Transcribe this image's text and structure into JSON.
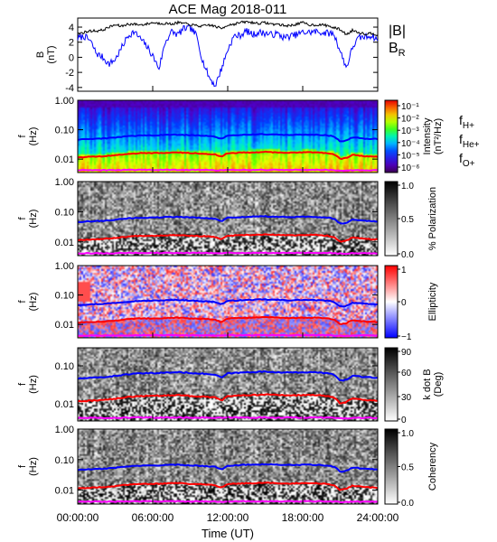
{
  "title": "ACE Mag 2018-011",
  "time_axis": {
    "label": "Time (UT)",
    "ticks": [
      "00:00:00",
      "06:00:00",
      "12:00:00",
      "18:00:00",
      "24:00:00"
    ],
    "range_hours": [
      0,
      24
    ]
  },
  "colors": {
    "B_total": "#000000",
    "B_R": "#0000ff",
    "f_H": "#0000ff",
    "f_He": "#ff0000",
    "f_O": "#ff00ff"
  },
  "chart_data": [
    {
      "type": "line",
      "ylabel": "B\n(nT)",
      "ylim": [
        -4.5,
        5.2
      ],
      "yticks": [
        "4",
        "2",
        "0",
        "-2",
        "-4"
      ],
      "legend": "top-right",
      "series": [
        {
          "name": "|B|",
          "x": [
            0,
            0.5,
            1,
            1.5,
            2,
            2.5,
            3,
            3.5,
            4,
            4.5,
            5,
            5.5,
            6,
            6.5,
            7,
            7.5,
            8,
            8.5,
            9,
            9.5,
            10,
            10.5,
            11,
            11.5,
            12,
            12.5,
            13,
            13.5,
            14,
            14.5,
            15,
            15.5,
            16,
            16.5,
            17,
            17.5,
            18,
            18.5,
            19,
            19.5,
            20,
            20.5,
            21,
            21.5,
            22,
            22.5,
            23,
            23.5,
            24
          ],
          "values": [
            3.1,
            3.3,
            3.5,
            3.5,
            3.6,
            4.0,
            4.3,
            4.1,
            4.4,
            4.4,
            4.3,
            4.4,
            4.6,
            4.5,
            4.5,
            4.4,
            4.6,
            4.5,
            4.3,
            4.2,
            4.1,
            4.3,
            4.1,
            3.8,
            4.3,
            4.4,
            4.6,
            4.7,
            4.6,
            4.5,
            4.6,
            4.4,
            4.4,
            4.2,
            4.2,
            4.4,
            4.6,
            4.3,
            4.3,
            4.3,
            4.2,
            3.9,
            3.7,
            3.0,
            3.6,
            3.3,
            3.1,
            3.2,
            3.0
          ]
        },
        {
          "name": "B_R",
          "x": [
            0,
            0.5,
            1,
            1.5,
            2,
            2.5,
            3,
            3.5,
            4,
            4.5,
            5,
            5.5,
            6,
            6.5,
            7,
            7.5,
            8,
            8.5,
            9,
            9.5,
            10,
            10.5,
            11,
            11.5,
            12,
            12.5,
            13,
            13.5,
            14,
            14.5,
            15,
            15.5,
            16,
            16.5,
            17,
            17.5,
            18,
            18.5,
            19,
            19.5,
            20,
            20.5,
            21,
            21.5,
            22,
            22.5,
            23,
            23.5,
            24
          ],
          "values": [
            2.5,
            2.8,
            2.2,
            0.5,
            0,
            -0.9,
            -0.3,
            1.2,
            2.8,
            3.4,
            2.5,
            1.5,
            0.2,
            -1.5,
            2.0,
            3.4,
            3.0,
            3.8,
            3.9,
            2.9,
            -0.5,
            -2.6,
            -3.8,
            -1.5,
            1.0,
            2.8,
            2.9,
            3.5,
            3.0,
            3.3,
            3.2,
            3.0,
            3.1,
            2.6,
            2.8,
            3.0,
            3.3,
            3.3,
            3.4,
            3.3,
            3.2,
            3.1,
            0.8,
            -1.4,
            1.4,
            2.6,
            2.7,
            2.9,
            2.3
          ]
        }
      ]
    },
    {
      "type": "heatmap",
      "name": "power spectral density",
      "ylabel": "f\n(Hz)",
      "yscale": "log",
      "ylim": [
        0.0035,
        1.0
      ],
      "yticks": [
        "1.00",
        "0.10",
        "0.01"
      ],
      "colorbar": {
        "label": "Intensity\n(nT²/Hz)",
        "palette": "rainbow",
        "ticks": [
          "10⁻¹",
          "10⁻²",
          "10⁻³",
          "10⁻⁴",
          "10⁻⁵",
          "10⁻⁶"
        ]
      },
      "legend_labels": [
        "f",
        "H+",
        "f",
        "He+",
        "f",
        "O+"
      ]
    },
    {
      "type": "heatmap",
      "name": "percent polarization",
      "ylabel": "f\n(Hz)",
      "yscale": "log",
      "ylim": [
        0.0035,
        1.0
      ],
      "yticks": [
        "1.00",
        "0.10",
        "0.01"
      ],
      "colorbar": {
        "label": "% Polarization",
        "palette": "grayscale",
        "ticks": [
          "1.0",
          "0.5",
          "0.0"
        ]
      }
    },
    {
      "type": "heatmap",
      "name": "ellipticity",
      "ylabel": "f\n(Hz)",
      "yscale": "log",
      "ylim": [
        0.0035,
        1.0
      ],
      "yticks": [
        "1.00",
        "0.10",
        "0.01"
      ],
      "colorbar": {
        "label": "Ellipticity",
        "palette": "blue-white-red",
        "ticks": [
          "1",
          "0",
          "−1"
        ]
      }
    },
    {
      "type": "heatmap",
      "name": "wave normal angle",
      "ylabel": "f\n(Hz)",
      "yscale": "log",
      "ylim": [
        0.0035,
        0.3
      ],
      "yticks": [
        "0.10",
        "0.01"
      ],
      "colorbar": {
        "label": "k dot B\n(Deg)",
        "palette": "grayscale",
        "ticks": [
          "90",
          "60",
          "30",
          "0"
        ]
      }
    },
    {
      "type": "heatmap",
      "name": "coherency",
      "ylabel": "f\n(Hz)",
      "yscale": "log",
      "ylim": [
        0.0035,
        1.0
      ],
      "yticks": [
        "1.00",
        "0.10",
        "0.01"
      ],
      "colorbar": {
        "label": "Coherency",
        "palette": "grayscale",
        "ticks": [
          "1.0",
          "0.5",
          "0.0"
        ]
      }
    }
  ],
  "gyrofrequency_lines": {
    "x": [
      0,
      1,
      2,
      3,
      4,
      5,
      6,
      7,
      8,
      9,
      10,
      11,
      11.5,
      12,
      13,
      14,
      15,
      16,
      17,
      18,
      19,
      20,
      20.5,
      21,
      21.5,
      22,
      23,
      24
    ],
    "f_H+": [
      0.046,
      0.048,
      0.05,
      0.054,
      0.06,
      0.063,
      0.064,
      0.066,
      0.068,
      0.065,
      0.062,
      0.058,
      0.048,
      0.063,
      0.066,
      0.069,
      0.07,
      0.068,
      0.066,
      0.068,
      0.067,
      0.064,
      0.058,
      0.04,
      0.043,
      0.055,
      0.05,
      0.048
    ],
    "f_He+": [
      0.0115,
      0.012,
      0.0125,
      0.0135,
      0.015,
      0.016,
      0.016,
      0.0165,
      0.017,
      0.016,
      0.0155,
      0.0145,
      0.012,
      0.016,
      0.0165,
      0.017,
      0.0175,
      0.017,
      0.0165,
      0.017,
      0.017,
      0.016,
      0.0145,
      0.01,
      0.011,
      0.014,
      0.0125,
      0.012
    ],
    "f_O+": [
      0.0042,
      0.0042,
      0.0042,
      0.0042,
      0.0043,
      0.0043,
      0.0043,
      0.0043,
      0.0043,
      0.0043,
      0.0043,
      0.0042,
      0.0042,
      0.0043,
      0.0043,
      0.0043,
      0.0043,
      0.0043,
      0.0043,
      0.0043,
      0.0043,
      0.0043,
      0.0042,
      0.0041,
      0.0041,
      0.0042,
      0.0042,
      0.0042
    ]
  }
}
